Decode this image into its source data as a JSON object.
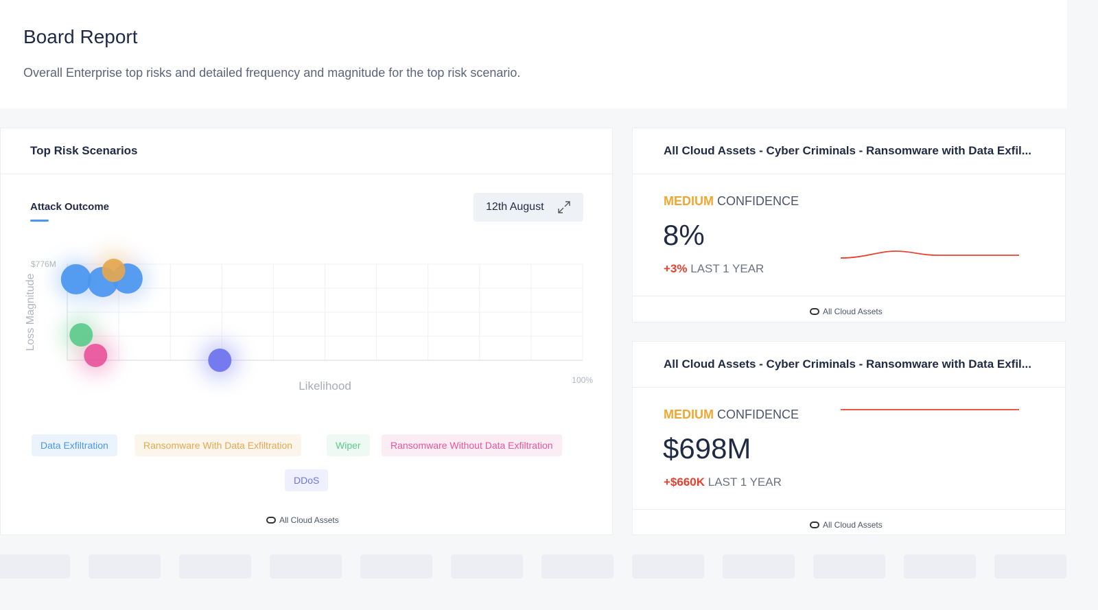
{
  "header": {
    "title": "Board Report",
    "subtitle": "Overall Enterprise top risks and detailed frequency and magnitude for the top risk scenario."
  },
  "left_card": {
    "title": "Top Risk Scenarios",
    "tab": "Attack Outcome",
    "date": "12th August",
    "chart": {
      "type": "scatter",
      "y_axis_label": "Loss Magnitude",
      "x_axis_label": "Likelihood",
      "y_max_label": "$776M",
      "x_max_label": "100%",
      "xlim": [
        0,
        100
      ],
      "ylim": [
        0,
        776
      ],
      "series": [
        {
          "name": "Data Exfiltration",
          "color": "#4a96f0",
          "points": [
            {
              "x": 1.7,
              "y": 654
            },
            {
              "x": 6.9,
              "y": 632
            },
            {
              "x": 11.7,
              "y": 660
            }
          ]
        },
        {
          "name": "Ransomware With Data Exfiltration",
          "color": "#e3a850",
          "points": [
            {
              "x": 9,
              "y": 726
            }
          ]
        },
        {
          "name": "Wiper",
          "color": "#5ccb8c",
          "points": [
            {
              "x": 2.7,
              "y": 205
            }
          ]
        },
        {
          "name": "Ransomware Without Data Exfiltration",
          "color": "#e8559c",
          "points": [
            {
              "x": 5.5,
              "y": 39
            }
          ]
        },
        {
          "name": "DDoS",
          "color": "#6d73ee",
          "points": [
            {
              "x": 29.6,
              "y": 0
            }
          ]
        }
      ]
    },
    "footer": "All Cloud Assets"
  },
  "cards": [
    {
      "title": "All Cloud Assets - Cyber Criminals - Ransomware with Data Exfil...",
      "confidence_level": "MEDIUM",
      "confidence_label": "CONFIDENCE",
      "value": "8%",
      "change": "+3%",
      "change_period": "LAST 1 YEAR",
      "footer": "All Cloud Assets"
    },
    {
      "title": "All Cloud Assets - Cyber Criminals - Ransomware with Data Exfil...",
      "confidence_level": "MEDIUM",
      "confidence_label": "CONFIDENCE",
      "value": "$698M",
      "change": "+$660K",
      "change_period": "LAST 1 YEAR",
      "footer": "All Cloud Assets"
    }
  ]
}
